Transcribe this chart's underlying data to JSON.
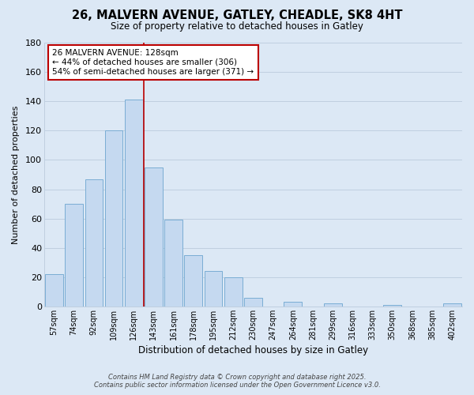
{
  "title": "26, MALVERN AVENUE, GATLEY, CHEADLE, SK8 4HT",
  "subtitle": "Size of property relative to detached houses in Gatley",
  "xlabel": "Distribution of detached houses by size in Gatley",
  "ylabel": "Number of detached properties",
  "bar_color": "#c5d9f0",
  "bar_edge_color": "#7aadd4",
  "background_color": "#dce8f5",
  "grid_color": "#c0cfe0",
  "categories": [
    "57sqm",
    "74sqm",
    "92sqm",
    "109sqm",
    "126sqm",
    "143sqm",
    "161sqm",
    "178sqm",
    "195sqm",
    "212sqm",
    "230sqm",
    "247sqm",
    "264sqm",
    "281sqm",
    "299sqm",
    "316sqm",
    "333sqm",
    "350sqm",
    "368sqm",
    "385sqm",
    "402sqm"
  ],
  "values": [
    22,
    70,
    87,
    120,
    141,
    95,
    59,
    35,
    24,
    20,
    6,
    0,
    3,
    0,
    2,
    0,
    0,
    1,
    0,
    0,
    2
  ],
  "ylim": [
    0,
    180
  ],
  "yticks": [
    0,
    20,
    40,
    60,
    80,
    100,
    120,
    140,
    160,
    180
  ],
  "vline_x": 4.5,
  "vline_color": "#bb0000",
  "annotation_text": "26 MALVERN AVENUE: 128sqm\n← 44% of detached houses are smaller (306)\n54% of semi-detached houses are larger (371) →",
  "annotation_box_color": "#ffffff",
  "annotation_box_edge": "#bb0000",
  "footer_line1": "Contains HM Land Registry data © Crown copyright and database right 2025.",
  "footer_line2": "Contains public sector information licensed under the Open Government Licence v3.0."
}
